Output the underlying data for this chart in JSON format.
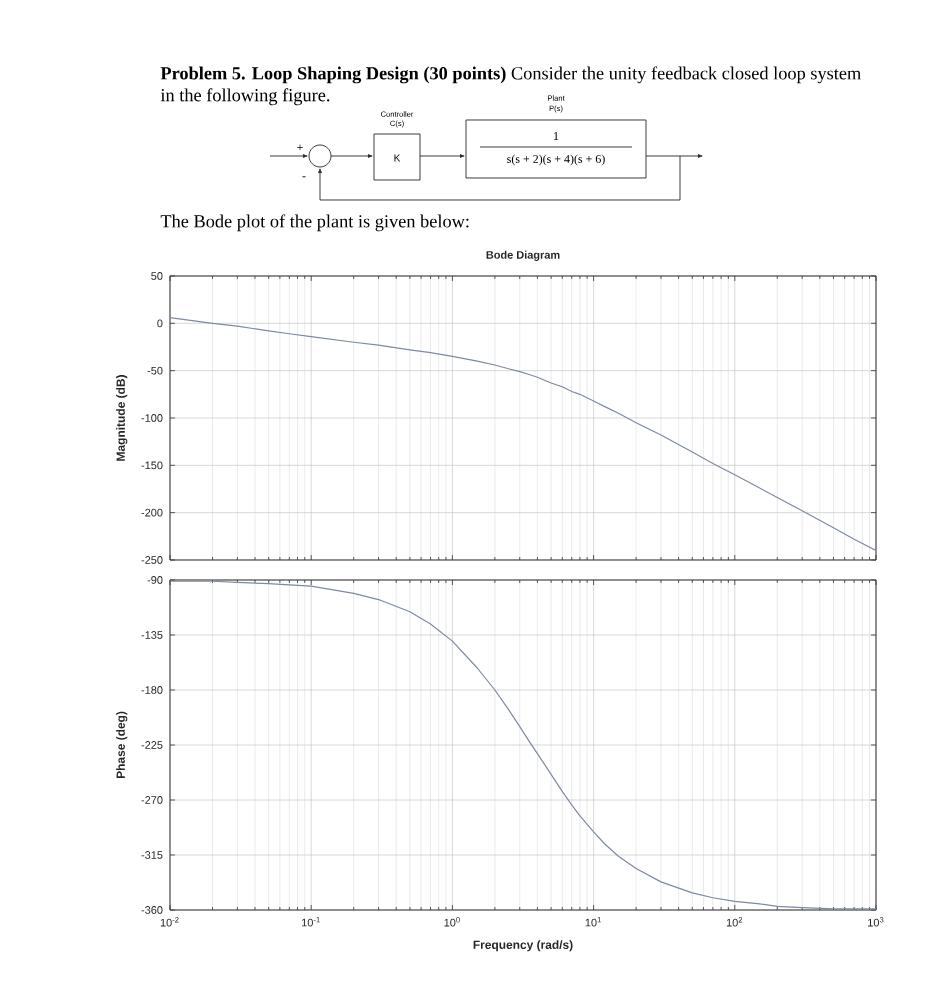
{
  "chart_data": [
    {
      "type": "other",
      "annotations": [
        "**Problem 5. Loop Shaping Design (30 points)** Consider the unity feedback closed loop system in the following figure.",
        "Controller",
        "C(s)",
        "K",
        "Plant",
        "P(s)",
        "1",
        "s(s + 2)(s + 4)(s + 6)",
        "+",
        "-",
        "The Bode plot of the plant is given below:"
      ]
    },
    {
      "type": "line",
      "title": "Bode Diagram",
      "ylabel": "Magnitude (dB)",
      "color": "#7d8aa3",
      "x": [
        0.01,
        0.02,
        0.03,
        0.05,
        0.07,
        0.1,
        0.2,
        0.3,
        0.5,
        0.7,
        1,
        1.5,
        2,
        2.5,
        3,
        3.5,
        4,
        5,
        6,
        7,
        8,
        10,
        12,
        15,
        20,
        30,
        50,
        70,
        100,
        150,
        200,
        300,
        500,
        700,
        1000
      ],
      "values": [
        6,
        0,
        -3,
        -8,
        -11,
        -14,
        -20,
        -23,
        -28,
        -31,
        -35,
        -40,
        -44,
        -48,
        -51,
        -54,
        -57,
        -63,
        -67,
        -72,
        -75,
        -82,
        -88,
        -95,
        -105,
        -118,
        -136,
        -148,
        -160,
        -174,
        -184,
        -198,
        -216,
        -228,
        -240
      ],
      "xlim": [
        0.01,
        1000
      ],
      "ylim": [
        -250,
        50
      ],
      "xticks": [
        {
          "value": 0.01,
          "label": null
        },
        {
          "value": 0.1,
          "label": null
        },
        {
          "value": 1,
          "label": null
        },
        {
          "value": 10,
          "label": null
        },
        {
          "value": 100,
          "label": null
        },
        {
          "value": 1000,
          "label": null
        }
      ],
      "yticks": [
        -250,
        -200,
        -150,
        -100,
        -50,
        0,
        50
      ],
      "grid": true,
      "log": "x",
      "tick_labels": "y"
    },
    {
      "type": "line",
      "xlabel": "Frequency (rad/s)",
      "ylabel": "Phase (deg)",
      "color": "#7d8aa3",
      "x": [
        0.01,
        0.02,
        0.03,
        0.05,
        0.07,
        0.1,
        0.2,
        0.3,
        0.5,
        0.7,
        1,
        1.5,
        2,
        2.5,
        3,
        3.5,
        4,
        5,
        6,
        7,
        8,
        10,
        12,
        15,
        20,
        30,
        50,
        70,
        100,
        150,
        200,
        300,
        500,
        700,
        1000
      ],
      "values": [
        -91,
        -91,
        -92,
        -93,
        -94,
        -95,
        -101,
        -106,
        -116,
        -126,
        -140,
        -162,
        -180,
        -196,
        -210,
        -222,
        -232,
        -249,
        -263,
        -274,
        -283,
        -296,
        -306,
        -316,
        -326,
        -337,
        -346,
        -350,
        -353,
        -355,
        -357,
        -358,
        -359,
        -359,
        -359
      ],
      "xlim": [
        0.01,
        1000
      ],
      "ylim": [
        -360,
        -90
      ],
      "xticks": [
        {
          "value": 0.01,
          "label": "10$^{-2}$"
        },
        {
          "value": 0.1,
          "label": "10$^{-1}$"
        },
        {
          "value": 1,
          "label": "10$^{0}$"
        },
        {
          "value": 10,
          "label": "10$^{1}$"
        },
        {
          "value": 100,
          "label": "10$^{2}$"
        },
        {
          "value": 1000,
          "label": "10$^{3}$"
        }
      ],
      "yticks": [
        -360,
        -315,
        -270,
        -225,
        -180,
        -135,
        -90
      ],
      "grid": true,
      "log": "x"
    }
  ]
}
